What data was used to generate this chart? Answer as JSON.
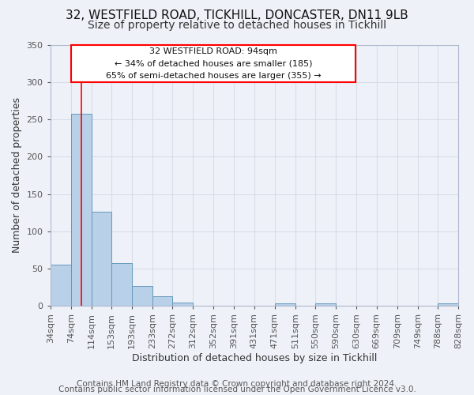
{
  "title_line1": "32, WESTFIELD ROAD, TICKHILL, DONCASTER, DN11 9LB",
  "title_line2": "Size of property relative to detached houses in Tickhill",
  "xlabel": "Distribution of detached houses by size in Tickhill",
  "ylabel": "Number of detached properties",
  "bar_left_edges": [
    34,
    74,
    114,
    153,
    193,
    233,
    272,
    312,
    352,
    391,
    431,
    471,
    511,
    550,
    590,
    630,
    669,
    709,
    749,
    788
  ],
  "bar_heights": [
    55,
    257,
    126,
    57,
    27,
    13,
    5,
    0,
    0,
    0,
    0,
    4,
    0,
    3,
    0,
    0,
    0,
    0,
    0,
    3
  ],
  "bar_widths": [
    40,
    40,
    39,
    40,
    40,
    39,
    40,
    40,
    39,
    40,
    40,
    40,
    39,
    40,
    40,
    39,
    40,
    40,
    39,
    40
  ],
  "x_tick_labels": [
    "34sqm",
    "74sqm",
    "114sqm",
    "153sqm",
    "193sqm",
    "233sqm",
    "272sqm",
    "312sqm",
    "352sqm",
    "391sqm",
    "431sqm",
    "471sqm",
    "511sqm",
    "550sqm",
    "590sqm",
    "630sqm",
    "669sqm",
    "709sqm",
    "749sqm",
    "788sqm",
    "828sqm"
  ],
  "bar_color": "#b8d0e8",
  "bar_edge_color": "#6699bb",
  "red_line_x": 94,
  "ylim": [
    0,
    350
  ],
  "yticks": [
    0,
    50,
    100,
    150,
    200,
    250,
    300,
    350
  ],
  "annotation_box_text_line1": "32 WESTFIELD ROAD: 94sqm",
  "annotation_box_text_line2": "← 34% of detached houses are smaller (185)",
  "annotation_box_text_line3": "65% of semi-detached houses are larger (355) →",
  "footer_line1": "Contains HM Land Registry data © Crown copyright and database right 2024.",
  "footer_line2": "Contains public sector information licensed under the Open Government Licence v3.0.",
  "background_color": "#eef2f8",
  "grid_color": "#d8dce8",
  "title_fontsize": 11,
  "subtitle_fontsize": 10,
  "axis_label_fontsize": 9,
  "tick_fontsize": 8,
  "annotation_fontsize": 8,
  "footer_fontsize": 7.5
}
